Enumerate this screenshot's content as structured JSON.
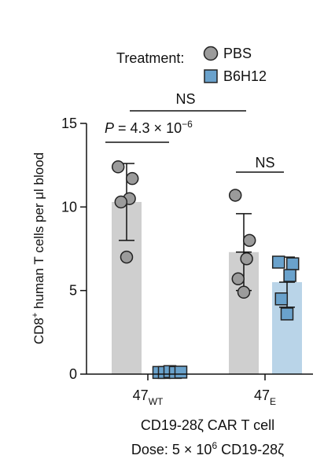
{
  "chart_data": {
    "type": "bar",
    "ylabel_pre": "CD8",
    "ylabel_sup": "+",
    "ylabel_post": " human T cells per μl blood",
    "ylim": [
      0,
      15
    ],
    "yticks": [
      0,
      5,
      10,
      15
    ],
    "legend": {
      "title": "Treatment:",
      "entries": [
        {
          "label": "PBS",
          "color": "#9b9b9b",
          "marker": "circle"
        },
        {
          "label": "B6H12",
          "color": "#6aa2cc",
          "marker": "square"
        }
      ]
    },
    "categories": [
      {
        "base": "47",
        "sub": "WT"
      },
      {
        "base": "47",
        "sub": "E"
      }
    ],
    "series": [
      {
        "name": "PBS",
        "bar_color": "#cfcfcf",
        "point_color": "#9b9b9b",
        "marker": "circle",
        "means": [
          10.3,
          7.3
        ],
        "sd": [
          2.3,
          2.3
        ],
        "points": [
          [
            12.4,
            11.7,
            10.5,
            10.3,
            7.0
          ],
          [
            10.7,
            8.0,
            6.9,
            5.7,
            4.9
          ]
        ]
      },
      {
        "name": "B6H12",
        "bar_color": "#b9d4e8",
        "point_color": "#6aa2cc",
        "marker": "square",
        "means": [
          0.1,
          5.5
        ],
        "sd": [
          0.05,
          1.5
        ],
        "points": [
          [
            0.1,
            0.1,
            0.15,
            0.1,
            0.12
          ],
          [
            6.7,
            6.6,
            5.9,
            4.5,
            3.6
          ]
        ]
      }
    ],
    "annotations": {
      "overall": "NS",
      "group1_p_prefix": "P",
      "group1_p_value": " = 4.3 × 10",
      "group1_p_exp": "−6",
      "group2": "NS"
    },
    "xlabel": "CD19-28ζ CAR T cell",
    "footer_pre": "Dose: 5 × 10",
    "footer_sup": "6",
    "footer_post": " CD19-28ζ"
  }
}
